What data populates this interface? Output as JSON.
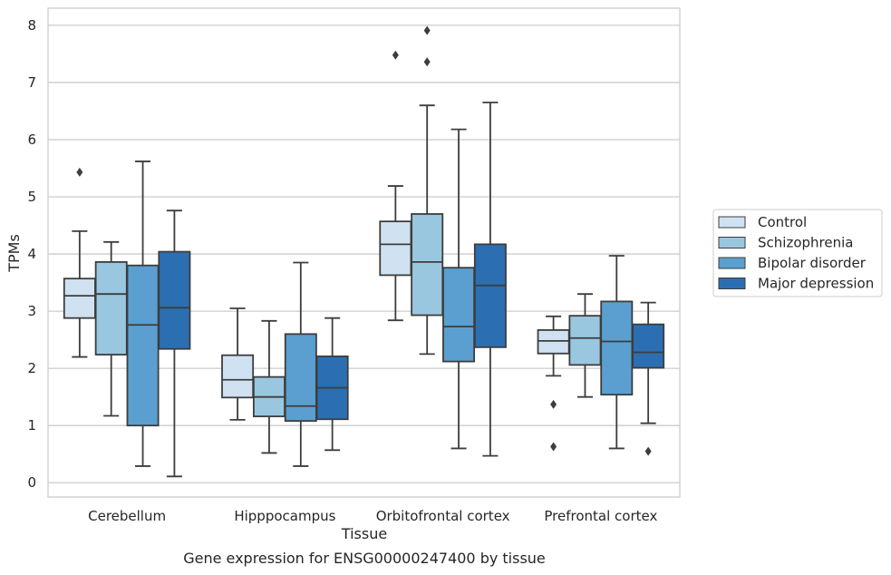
{
  "caption": "Gene expression for ENSG00000247400 by tissue",
  "chart_data": {
    "type": "boxplot",
    "xlabel": "Tissue",
    "ylabel": "TPMs",
    "ylim": [
      -0.25,
      8.3
    ],
    "yticks": [
      0,
      1,
      2,
      3,
      4,
      5,
      6,
      7,
      8
    ],
    "grid": "horizontal",
    "legend_position": "right",
    "categories": [
      "Cerebellum",
      "Hipppocampus",
      "Orbitofrontal cortex",
      "Prefrontal cortex"
    ],
    "series": [
      {
        "name": "Control",
        "color": "#d0e2f2",
        "boxes": [
          {
            "whislo": 2.2,
            "q1": 2.88,
            "med": 3.27,
            "q3": 3.57,
            "whishi": 4.4,
            "fliers": [
              5.43
            ]
          },
          {
            "whislo": 1.1,
            "q1": 1.49,
            "med": 1.8,
            "q3": 2.23,
            "whishi": 3.05,
            "fliers": []
          },
          {
            "whislo": 2.84,
            "q1": 3.63,
            "med": 4.17,
            "q3": 4.57,
            "whishi": 5.19,
            "fliers": [
              7.48
            ]
          },
          {
            "whislo": 1.87,
            "q1": 2.26,
            "med": 2.48,
            "q3": 2.67,
            "whishi": 2.91,
            "fliers": [
              1.37,
              0.63
            ]
          }
        ]
      },
      {
        "name": "Schizophrenia",
        "color": "#9ac7e0",
        "boxes": [
          {
            "whislo": 1.17,
            "q1": 2.24,
            "med": 3.3,
            "q3": 3.86,
            "whishi": 4.21,
            "fliers": []
          },
          {
            "whislo": 0.52,
            "q1": 1.16,
            "med": 1.5,
            "q3": 1.85,
            "whishi": 2.83,
            "fliers": []
          },
          {
            "whislo": 2.25,
            "q1": 2.93,
            "med": 3.86,
            "q3": 4.7,
            "whishi": 6.6,
            "fliers": [
              7.91,
              7.36
            ]
          },
          {
            "whislo": 1.5,
            "q1": 2.06,
            "med": 2.53,
            "q3": 2.92,
            "whishi": 3.3,
            "fliers": []
          }
        ]
      },
      {
        "name": "Bipolar disorder",
        "color": "#5a9fcf",
        "boxes": [
          {
            "whislo": 0.29,
            "q1": 1.0,
            "med": 2.76,
            "q3": 3.8,
            "whishi": 5.62,
            "fliers": []
          },
          {
            "whislo": 0.29,
            "q1": 1.08,
            "med": 1.34,
            "q3": 2.6,
            "whishi": 3.85,
            "fliers": []
          },
          {
            "whislo": 0.6,
            "q1": 2.12,
            "med": 2.73,
            "q3": 3.76,
            "whishi": 6.18,
            "fliers": []
          },
          {
            "whislo": 0.6,
            "q1": 1.54,
            "med": 2.47,
            "q3": 3.17,
            "whishi": 3.97,
            "fliers": []
          }
        ]
      },
      {
        "name": "Major depression",
        "color": "#2b6fb2",
        "boxes": [
          {
            "whislo": 0.11,
            "q1": 2.34,
            "med": 3.06,
            "q3": 4.04,
            "whishi": 4.76,
            "fliers": []
          },
          {
            "whislo": 0.57,
            "q1": 1.11,
            "med": 1.66,
            "q3": 2.21,
            "whishi": 2.88,
            "fliers": []
          },
          {
            "whislo": 0.47,
            "q1": 2.37,
            "med": 3.45,
            "q3": 4.17,
            "whishi": 6.65,
            "fliers": []
          },
          {
            "whislo": 1.04,
            "q1": 2.01,
            "med": 2.28,
            "q3": 2.77,
            "whishi": 3.15,
            "fliers": [
              0.55
            ]
          }
        ]
      }
    ]
  }
}
